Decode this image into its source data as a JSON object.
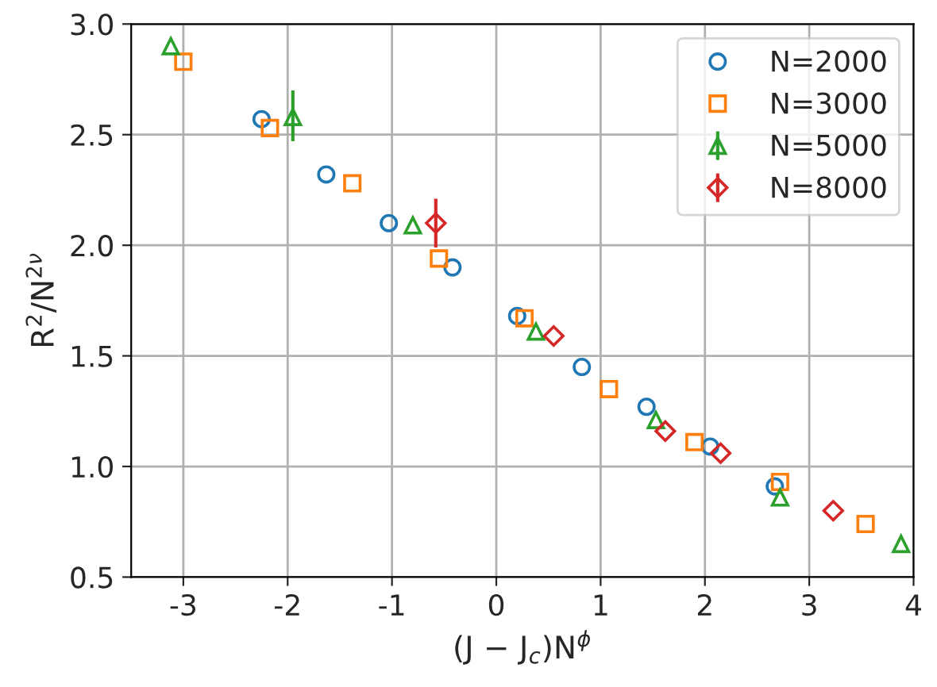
{
  "chart_data": {
    "type": "scatter",
    "xlabel": "(J − J$_{c}$)N$^{ϕ}$",
    "ylabel": "R$^{2}$/N$^{2ν}$",
    "xlim": [
      -3.5,
      4
    ],
    "xticks": [
      -3,
      -2,
      -1,
      0,
      1,
      2,
      3,
      4
    ],
    "ylim": [
      0.5,
      3.0
    ],
    "yticks": [
      0.5,
      {
        "value": 1,
        "label": "1.0"
      },
      1.5,
      {
        "value": 2,
        "label": "2.0"
      },
      2.5,
      {
        "value": 3,
        "label": "3.0"
      }
    ],
    "grid": true,
    "legend": "top right",
    "series": [
      {
        "name": "N=2000",
        "color": "#1f77b4",
        "marker": "circle",
        "x": [
          -2.25,
          -1.63,
          -1.03,
          -0.42,
          0.2,
          0.82,
          1.44,
          2.05,
          2.67
        ],
        "values": [
          2.57,
          2.32,
          2.1,
          1.9,
          1.68,
          1.45,
          1.27,
          1.09,
          0.91
        ]
      },
      {
        "name": "N=3000",
        "color": "#ff7f0e",
        "marker": "square",
        "x": [
          -3.0,
          -2.17,
          -1.38,
          -0.55,
          0.27,
          1.08,
          1.9,
          2.72,
          3.54
        ],
        "values": [
          2.83,
          2.53,
          2.28,
          1.94,
          1.67,
          1.35,
          1.11,
          0.93,
          0.74
        ]
      },
      {
        "name": "N=5000",
        "color": "#2ca02c",
        "marker": "triangle",
        "x": [
          -3.12,
          -1.95,
          -0.8,
          0.38,
          1.53,
          2.72,
          3.88
        ],
        "values": [
          2.9,
          2.58,
          2.09,
          1.61,
          1.21,
          0.86,
          0.65
        ],
        "errors": [
          null,
          [
            2.47,
            2.7
          ],
          null,
          null,
          null,
          null,
          null
        ]
      },
      {
        "name": "N=8000",
        "color": "#d62728",
        "marker": "diamond",
        "x": [
          -0.58,
          0.55,
          1.62,
          2.15,
          3.23
        ],
        "values": [
          2.1,
          1.59,
          1.16,
          1.06,
          0.8
        ],
        "errors": [
          [
            1.99,
            2.21
          ],
          null,
          null,
          null,
          null
        ]
      }
    ]
  }
}
